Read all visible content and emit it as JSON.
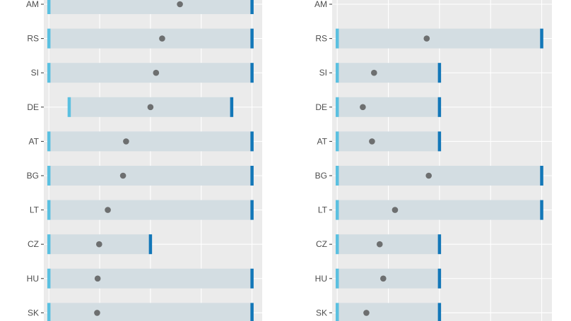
{
  "chart_data": [
    {
      "type": "range-dot",
      "panel": "left",
      "categories": [
        "AM",
        "RS",
        "SI",
        "DE",
        "AT",
        "BG",
        "LT",
        "CZ",
        "HU",
        "SK"
      ],
      "ranges": [
        {
          "low": 0,
          "high": 4
        },
        {
          "low": 0,
          "high": 4
        },
        {
          "low": 0,
          "high": 4
        },
        {
          "low": 0.4,
          "high": 3.6
        },
        {
          "low": 0,
          "high": 4
        },
        {
          "low": 0,
          "high": 4
        },
        {
          "low": 0,
          "high": 4
        },
        {
          "low": 0,
          "high": 2
        },
        {
          "low": 0,
          "high": 4
        },
        {
          "low": 0,
          "high": 4
        }
      ],
      "values": [
        2.58,
        2.23,
        2.11,
        2.0,
        1.52,
        1.46,
        1.16,
        0.99,
        0.96,
        0.95
      ],
      "xlim": [
        -0.1,
        4.2
      ]
    },
    {
      "type": "range-dot",
      "panel": "right",
      "categories": [
        "AM",
        "RS",
        "SI",
        "DE",
        "AT",
        "BG",
        "LT",
        "CZ",
        "HU",
        "SK"
      ],
      "ranges": [
        null,
        {
          "low": 0,
          "high": 4
        },
        {
          "low": 0,
          "high": 2
        },
        {
          "low": 0,
          "high": 2
        },
        {
          "low": 0,
          "high": 2
        },
        {
          "low": 0,
          "high": 4
        },
        {
          "low": 0,
          "high": 4
        },
        {
          "low": 0,
          "high": 2
        },
        {
          "low": 0,
          "high": 2
        },
        {
          "low": 0,
          "high": 2
        }
      ],
      "values": [
        null,
        1.75,
        0.72,
        0.5,
        0.68,
        1.79,
        1.13,
        0.83,
        0.9,
        0.57
      ],
      "xlim": [
        -0.1,
        4.2
      ]
    }
  ],
  "colors": {
    "panel_bg": "#ebebeb",
    "grid_major": "#ffffff",
    "range_fill": "#d3dde2",
    "low_cap": "#5bc0e0",
    "high_cap": "#1377b8",
    "dot": "#6d6f70",
    "tick_label": "#4d4d4d"
  }
}
